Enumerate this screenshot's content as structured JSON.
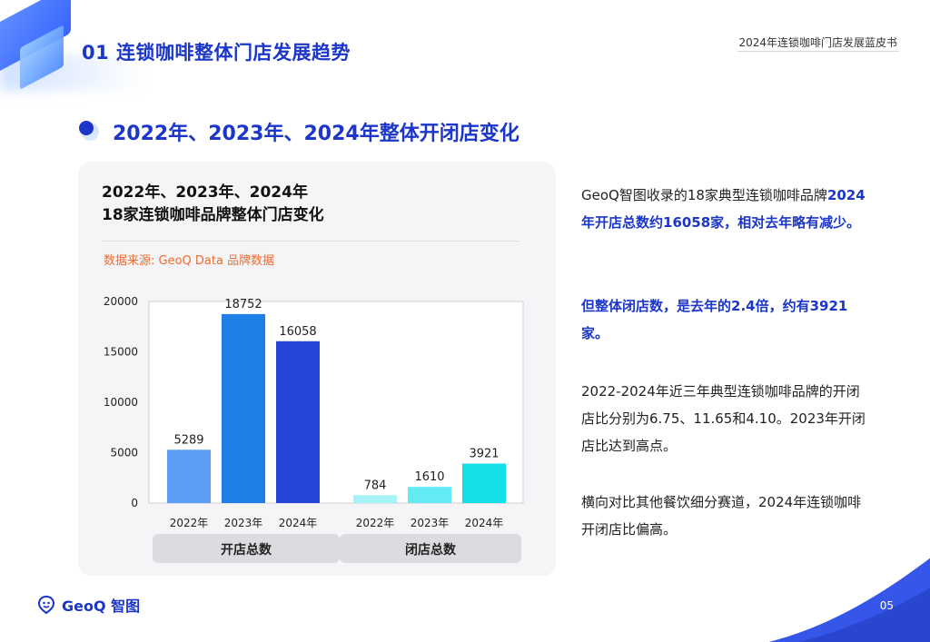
{
  "header": {
    "section_title": "01 连锁咖啡整体门店发展趋势",
    "report_title": "2024年连锁咖啡门店发展蓝皮书"
  },
  "subtitle": "2022年、2023年、2024年整体开闭店变化",
  "chart_data": {
    "type": "bar",
    "title_line1": "2022年、2023年、2024年",
    "title_line2": "18家连锁咖啡品牌整体门店变化",
    "source": "数据来源: GeoQ Data 品牌数据",
    "ylim": [
      0,
      20000
    ],
    "yticks": [
      "0",
      "5000",
      "10000",
      "15000",
      "20000"
    ],
    "groups": [
      {
        "name": "开店总数",
        "categories": [
          "2022年",
          "2023年",
          "2024年"
        ],
        "values": [
          5289,
          18752,
          16058
        ],
        "colors": [
          "#5a9cf6",
          "#1e7fe6",
          "#2445d6"
        ]
      },
      {
        "name": "闭店总数",
        "categories": [
          "2022年",
          "2023年",
          "2024年"
        ],
        "values": [
          784,
          1610,
          3921
        ],
        "colors": [
          "#a6f3f8",
          "#63eaf3",
          "#17dfe8"
        ]
      }
    ]
  },
  "description": {
    "p1_a": "GeoQ智图收录的18家典型连锁咖啡品牌",
    "p1_b": "2024年开店总数约16058家，相对去年略有减少。",
    "p2": "但整体闭店数，是去年的2.4倍，约有3921家。",
    "p3": "2022-2024年近三年典型连锁咖啡品牌的开闭店比分别为6.75、11.65和4.10。2023年开闭店比达到高点。",
    "p4": "横向对比其他餐饮细分赛道，2024年连锁咖啡开闭店比偏高。"
  },
  "footer": {
    "logo_text": "GeoQ 智图",
    "page_number": "05"
  }
}
